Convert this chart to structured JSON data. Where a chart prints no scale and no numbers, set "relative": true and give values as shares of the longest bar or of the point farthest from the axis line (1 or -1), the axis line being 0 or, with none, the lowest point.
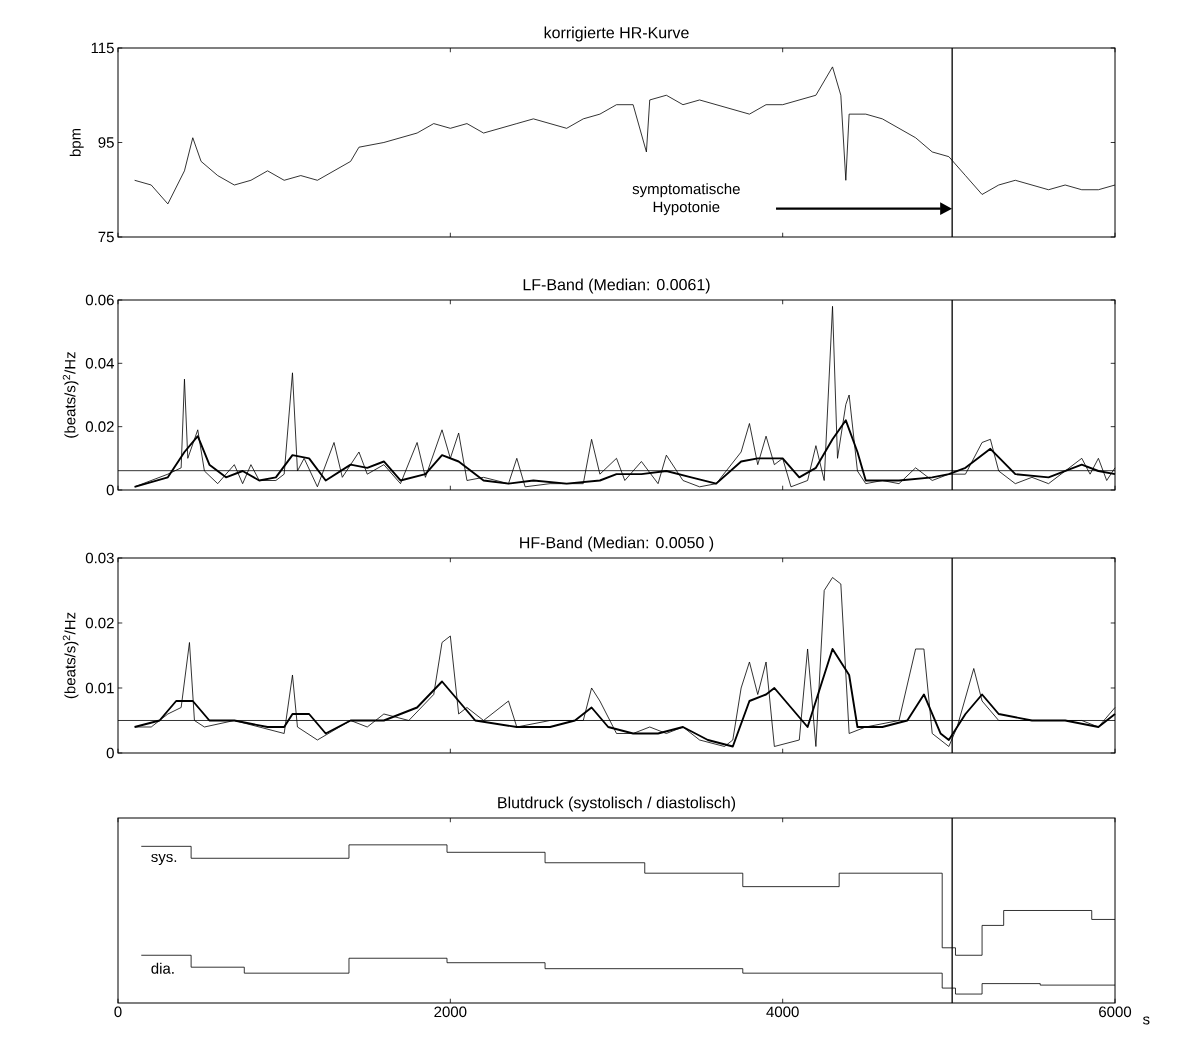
{
  "chart_data": [
    {
      "type": "line",
      "title": "korrigierte HR-Kurve",
      "ylabel": "bpm",
      "xlim": [
        0,
        6000
      ],
      "xticks": [
        0,
        2000,
        4000,
        6000
      ],
      "ylim": [
        75,
        115
      ],
      "yticks": [
        75,
        95,
        115
      ],
      "tick_labels": "y",
      "series": [
        {
          "color": "#000000",
          "x": [
            100,
            200,
            300,
            400,
            450,
            500,
            600,
            700,
            800,
            900,
            1000,
            1100,
            1200,
            1300,
            1400,
            1450,
            1600,
            1700,
            1800,
            1900,
            2000,
            2100,
            2200,
            2300,
            2400,
            2500,
            2600,
            2700,
            2800,
            2900,
            3000,
            3100,
            3180,
            3200,
            3300,
            3400,
            3500,
            3600,
            3700,
            3800,
            3900,
            4000,
            4100,
            4200,
            4300,
            4350,
            4380,
            4400,
            4500,
            4600,
            4700,
            4800,
            4900,
            5000,
            5100,
            5200,
            5300,
            5400,
            5500,
            5600,
            5700,
            5800,
            5900,
            6000
          ],
          "values": [
            87,
            86,
            82,
            89,
            96,
            91,
            88,
            86,
            87,
            89,
            87,
            88,
            87,
            89,
            91,
            94,
            95,
            96,
            97,
            99,
            98,
            99,
            97,
            98,
            99,
            100,
            99,
            98,
            100,
            101,
            103,
            103,
            93,
            104,
            105,
            103,
            104,
            103,
            102,
            101,
            103,
            103,
            104,
            105,
            111,
            105,
            87,
            101,
            101,
            100,
            98,
            96,
            93,
            92,
            88,
            84,
            86,
            87,
            86,
            85,
            86,
            85,
            85,
            86
          ]
        }
      ],
      "ref_lines": [
        {
          "axis": "x",
          "value": 5020
        }
      ],
      "annotations": [
        "symptomatische Hypotonie"
      ]
    },
    {
      "type": "line",
      "title": "LF-Band (Median: 0.0061)",
      "ylabel": "(beats/s)$^{2}$/Hz",
      "xlim": [
        0,
        6000
      ],
      "xticks": [
        0,
        2000,
        4000,
        6000
      ],
      "ylim": [
        0,
        0.06
      ],
      "yticks": [
        0,
        0.02,
        0.04,
        0.06
      ],
      "tick_labels": "y",
      "series": [
        {
          "color": "#000000",
          "x": [
            100,
            200,
            300,
            380,
            400,
            420,
            480,
            520,
            600,
            700,
            750,
            800,
            850,
            950,
            1000,
            1050,
            1080,
            1120,
            1200,
            1300,
            1350,
            1450,
            1500,
            1600,
            1700,
            1800,
            1850,
            1950,
            2000,
            2050,
            2100,
            2200,
            2350,
            2400,
            2450,
            2600,
            2800,
            2850,
            2900,
            3000,
            3050,
            3150,
            3250,
            3300,
            3400,
            3500,
            3600,
            3750,
            3800,
            3850,
            3900,
            3950,
            4000,
            4050,
            4150,
            4200,
            4250,
            4300,
            4330,
            4380,
            4400,
            4450,
            4500,
            4600,
            4700,
            4800,
            4900,
            5000,
            5100,
            5200,
            5250,
            5300,
            5400,
            5500,
            5600,
            5700,
            5800,
            5850,
            5900,
            5950,
            6000
          ],
          "values": [
            0.001,
            0.003,
            0.005,
            0.007,
            0.035,
            0.01,
            0.019,
            0.006,
            0.002,
            0.008,
            0.002,
            0.008,
            0.003,
            0.003,
            0.005,
            0.037,
            0.006,
            0.01,
            0.001,
            0.015,
            0.004,
            0.012,
            0.005,
            0.008,
            0.002,
            0.015,
            0.004,
            0.019,
            0.01,
            0.018,
            0.003,
            0.004,
            0.002,
            0.01,
            0.001,
            0.002,
            0.002,
            0.016,
            0.005,
            0.01,
            0.003,
            0.009,
            0.002,
            0.011,
            0.003,
            0.001,
            0.002,
            0.012,
            0.021,
            0.008,
            0.017,
            0.008,
            0.01,
            0.001,
            0.003,
            0.014,
            0.003,
            0.058,
            0.01,
            0.027,
            0.03,
            0.006,
            0.002,
            0.003,
            0.002,
            0.007,
            0.003,
            0.005,
            0.005,
            0.015,
            0.016,
            0.006,
            0.002,
            0.004,
            0.002,
            0.006,
            0.01,
            0.005,
            0.01,
            0.003,
            0.007
          ]
        },
        {
          "color": "#000000",
          "x": [
            100,
            300,
            400,
            480,
            550,
            650,
            750,
            850,
            950,
            1050,
            1150,
            1250,
            1400,
            1500,
            1600,
            1700,
            1850,
            1950,
            2050,
            2200,
            2350,
            2500,
            2700,
            2900,
            3000,
            3150,
            3300,
            3450,
            3600,
            3750,
            3850,
            4000,
            4100,
            4200,
            4300,
            4380,
            4450,
            4500,
            4700,
            4900,
            5000,
            5100,
            5250,
            5400,
            5600,
            5800,
            5900,
            6000
          ],
          "values": [
            0.001,
            0.004,
            0.012,
            0.017,
            0.008,
            0.004,
            0.006,
            0.003,
            0.004,
            0.011,
            0.01,
            0.003,
            0.008,
            0.007,
            0.009,
            0.003,
            0.005,
            0.011,
            0.009,
            0.003,
            0.002,
            0.003,
            0.002,
            0.003,
            0.005,
            0.005,
            0.006,
            0.004,
            0.002,
            0.009,
            0.01,
            0.01,
            0.004,
            0.007,
            0.016,
            0.022,
            0.012,
            0.003,
            0.003,
            0.004,
            0.005,
            0.007,
            0.013,
            0.005,
            0.004,
            0.008,
            0.006,
            0.005
          ]
        }
      ],
      "ref_lines": [
        {
          "axis": "x",
          "value": 5020
        },
        {
          "axis": "y",
          "value": 0.0061
        }
      ]
    },
    {
      "type": "line",
      "title": "HF-Band (Median: 0.0050 )",
      "ylabel": "(beats/s)$^{2}$/Hz",
      "xlim": [
        0,
        6000
      ],
      "xticks": [
        0,
        2000,
        4000,
        6000
      ],
      "ylim": [
        0,
        0.03
      ],
      "yticks": [
        0,
        0.01,
        0.02,
        0.03
      ],
      "tick_labels": "y",
      "series": [
        {
          "color": "#000000",
          "x": [
            100,
            200,
            300,
            380,
            430,
            460,
            520,
            700,
            850,
            1000,
            1050,
            1080,
            1200,
            1400,
            1500,
            1600,
            1750,
            1900,
            1950,
            2000,
            2050,
            2100,
            2200,
            2350,
            2400,
            2600,
            2800,
            2850,
            2900,
            3000,
            3100,
            3200,
            3300,
            3400,
            3500,
            3650,
            3700,
            3750,
            3800,
            3850,
            3900,
            3950,
            4100,
            4150,
            4200,
            4250,
            4300,
            4350,
            4400,
            4500,
            4700,
            4800,
            4850,
            4900,
            5000,
            5050,
            5150,
            5200,
            5300,
            5500,
            5700,
            5800,
            5900,
            6000
          ],
          "values": [
            0.004,
            0.004,
            0.006,
            0.007,
            0.017,
            0.005,
            0.004,
            0.005,
            0.004,
            0.003,
            0.012,
            0.004,
            0.002,
            0.005,
            0.004,
            0.006,
            0.005,
            0.009,
            0.017,
            0.018,
            0.006,
            0.007,
            0.005,
            0.008,
            0.004,
            0.005,
            0.005,
            0.01,
            0.008,
            0.003,
            0.003,
            0.004,
            0.003,
            0.004,
            0.002,
            0.001,
            0.002,
            0.01,
            0.014,
            0.009,
            0.014,
            0.001,
            0.002,
            0.016,
            0.001,
            0.025,
            0.027,
            0.026,
            0.003,
            0.004,
            0.005,
            0.016,
            0.016,
            0.003,
            0.001,
            0.004,
            0.013,
            0.008,
            0.005,
            0.005,
            0.005,
            0.005,
            0.004,
            0.007
          ]
        },
        {
          "color": "#000000",
          "x": [
            100,
            250,
            350,
            450,
            550,
            700,
            900,
            1000,
            1050,
            1150,
            1250,
            1400,
            1600,
            1800,
            1950,
            2050,
            2150,
            2400,
            2600,
            2750,
            2850,
            2950,
            3100,
            3250,
            3400,
            3550,
            3700,
            3800,
            3900,
            3950,
            4050,
            4150,
            4250,
            4300,
            4400,
            4450,
            4600,
            4750,
            4850,
            4950,
            5000,
            5100,
            5200,
            5300,
            5500,
            5700,
            5900,
            6000
          ],
          "values": [
            0.004,
            0.005,
            0.008,
            0.008,
            0.005,
            0.005,
            0.004,
            0.004,
            0.006,
            0.006,
            0.003,
            0.005,
            0.005,
            0.007,
            0.011,
            0.008,
            0.005,
            0.004,
            0.004,
            0.005,
            0.007,
            0.004,
            0.003,
            0.003,
            0.004,
            0.002,
            0.001,
            0.008,
            0.009,
            0.01,
            0.007,
            0.004,
            0.012,
            0.016,
            0.012,
            0.004,
            0.004,
            0.005,
            0.009,
            0.003,
            0.002,
            0.006,
            0.009,
            0.006,
            0.005,
            0.005,
            0.004,
            0.006
          ]
        }
      ],
      "ref_lines": [
        {
          "axis": "x",
          "value": 5020
        },
        {
          "axis": "y",
          "value": 0.005
        }
      ]
    },
    {
      "type": "step",
      "title": "Blutdruck (systolisch / diastolisch)",
      "xlabel": "s",
      "xlim": [
        0,
        6000
      ],
      "xticks": [
        0,
        2000,
        4000,
        6000
      ],
      "relative": true,
      "tick_labels": "x",
      "series": [
        {
          "name": "sys.",
          "color": "#000000",
          "x": [
            140,
            440,
            1390,
            1980,
            2570,
            3170,
            3760,
            4340,
            4960,
            5040,
            5200,
            5330,
            5860,
            6000
          ],
          "values": [
            0.99,
            0.91,
            1.0,
            0.95,
            0.88,
            0.81,
            0.72,
            0.81,
            0.31,
            0.26,
            0.46,
            0.56,
            0.5,
            0.5
          ]
        },
        {
          "name": "dia.",
          "color": "#000000",
          "x": [
            140,
            440,
            760,
            1390,
            1980,
            2570,
            3760,
            4960,
            5040,
            5200,
            5550,
            6000
          ],
          "values": [
            0.26,
            0.18,
            0.14,
            0.24,
            0.21,
            0.17,
            0.14,
            0.04,
            0,
            0.07,
            0.06,
            0.06
          ]
        }
      ],
      "ref_lines": [
        {
          "axis": "x",
          "value": 5020
        }
      ]
    }
  ]
}
